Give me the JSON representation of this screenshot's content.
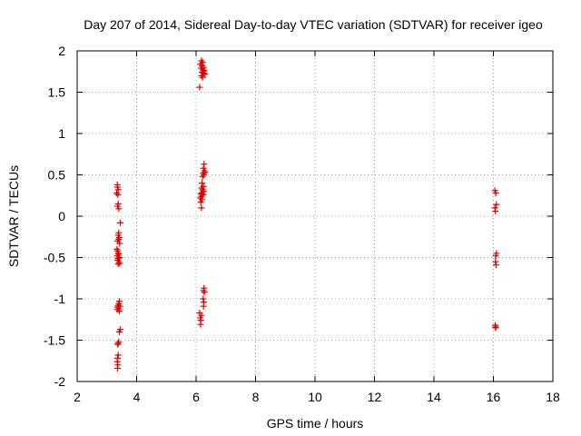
{
  "chart_data": {
    "type": "scatter",
    "title": "Day 207 of 2014, Sidereal Day-to-day VTEC variation (SDTVAR) for receiver igeo",
    "xlabel": "GPS time / hours",
    "ylabel": "SDTVAR / TECUs",
    "xlim": [
      2,
      18
    ],
    "ylim": [
      -2,
      2
    ],
    "x_ticks": [
      2,
      4,
      6,
      8,
      10,
      12,
      14,
      16,
      18
    ],
    "y_ticks": [
      -2,
      -1.5,
      -1,
      -0.5,
      0,
      0.5,
      1,
      1.5,
      2
    ],
    "x_tick_labels": [
      "2",
      "4",
      "6",
      "8",
      "10",
      "12",
      "14",
      "16",
      "18"
    ],
    "y_tick_labels": [
      "-2",
      "-1.5",
      "-1",
      "-0.5",
      "0",
      "0.5",
      "1",
      "1.5",
      "2"
    ],
    "grid": true,
    "marker": "+",
    "color": "#e00000",
    "series": [
      {
        "points": [
          [
            3.35,
            0.38
          ],
          [
            3.36,
            0.35
          ],
          [
            3.38,
            0.32
          ],
          [
            3.33,
            0.28
          ],
          [
            3.37,
            0.26
          ],
          [
            3.38,
            0.15
          ],
          [
            3.36,
            0.12
          ],
          [
            3.4,
            0.09
          ],
          [
            3.45,
            -0.08
          ],
          [
            3.4,
            -0.2
          ],
          [
            3.38,
            -0.23
          ],
          [
            3.42,
            -0.26
          ],
          [
            3.4,
            -0.28
          ],
          [
            3.36,
            -0.3
          ],
          [
            3.43,
            -0.33
          ],
          [
            3.34,
            -0.4
          ],
          [
            3.36,
            -0.42
          ],
          [
            3.38,
            -0.45
          ],
          [
            3.4,
            -0.46
          ],
          [
            3.35,
            -0.48
          ],
          [
            3.42,
            -0.5
          ],
          [
            3.38,
            -0.51
          ],
          [
            3.36,
            -0.53
          ],
          [
            3.4,
            -0.55
          ],
          [
            3.43,
            -0.57
          ],
          [
            3.38,
            -0.58
          ],
          [
            3.42,
            -1.03
          ],
          [
            3.4,
            -1.06
          ],
          [
            3.38,
            -1.08
          ],
          [
            3.44,
            -1.09
          ],
          [
            3.36,
            -1.1
          ],
          [
            3.4,
            -1.12
          ],
          [
            3.35,
            -1.13
          ],
          [
            3.42,
            -1.15
          ],
          [
            3.45,
            -1.37
          ],
          [
            3.42,
            -1.4
          ],
          [
            3.4,
            -1.52
          ],
          [
            3.38,
            -1.54
          ],
          [
            3.36,
            -1.55
          ],
          [
            3.38,
            -1.68
          ],
          [
            3.36,
            -1.72
          ],
          [
            3.35,
            -1.76
          ],
          [
            3.37,
            -1.8
          ],
          [
            3.36,
            -1.84
          ],
          [
            6.18,
            1.88
          ],
          [
            6.22,
            1.86
          ],
          [
            6.15,
            1.84
          ],
          [
            6.2,
            1.82
          ],
          [
            6.25,
            1.8
          ],
          [
            6.17,
            1.79
          ],
          [
            6.23,
            1.77
          ],
          [
            6.28,
            1.76
          ],
          [
            6.2,
            1.74
          ],
          [
            6.25,
            1.73
          ],
          [
            6.3,
            1.72
          ],
          [
            6.18,
            1.7
          ],
          [
            6.22,
            1.68
          ],
          [
            6.12,
            1.56
          ],
          [
            6.27,
            0.63
          ],
          [
            6.25,
            0.58
          ],
          [
            6.28,
            0.55
          ],
          [
            6.3,
            0.53
          ],
          [
            6.24,
            0.52
          ],
          [
            6.26,
            0.5
          ],
          [
            6.22,
            0.48
          ],
          [
            6.2,
            0.4
          ],
          [
            6.25,
            0.36
          ],
          [
            6.18,
            0.34
          ],
          [
            6.22,
            0.32
          ],
          [
            6.26,
            0.3
          ],
          [
            6.2,
            0.28
          ],
          [
            6.16,
            0.27
          ],
          [
            6.24,
            0.26
          ],
          [
            6.18,
            0.24
          ],
          [
            6.14,
            0.22
          ],
          [
            6.2,
            0.2
          ],
          [
            6.16,
            0.17
          ],
          [
            6.18,
            0.1
          ],
          [
            6.27,
            -0.87
          ],
          [
            6.25,
            -0.9
          ],
          [
            6.28,
            -0.92
          ],
          [
            6.24,
            -1.0
          ],
          [
            6.26,
            -1.04
          ],
          [
            6.25,
            -1.09
          ],
          [
            6.12,
            -1.17
          ],
          [
            6.18,
            -1.2
          ],
          [
            6.14,
            -1.23
          ],
          [
            6.16,
            -1.26
          ],
          [
            6.15,
            -1.31
          ],
          [
            16.05,
            0.31
          ],
          [
            16.08,
            0.28
          ],
          [
            16.1,
            0.14
          ],
          [
            16.05,
            0.1
          ],
          [
            16.07,
            0.06
          ],
          [
            16.1,
            -0.45
          ],
          [
            16.08,
            -0.48
          ],
          [
            16.07,
            -0.55
          ],
          [
            16.09,
            -0.59
          ],
          [
            16.06,
            -1.32
          ],
          [
            16.08,
            -1.34
          ],
          [
            16.07,
            -1.35
          ]
        ]
      }
    ]
  }
}
